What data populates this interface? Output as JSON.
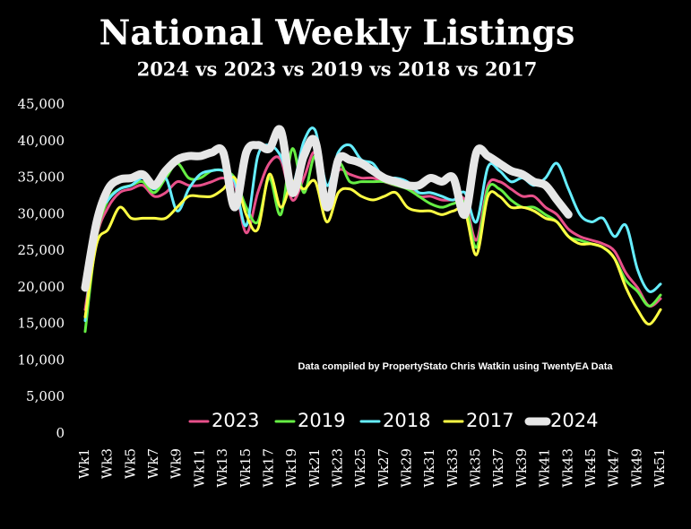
{
  "chart_data": {
    "type": "line",
    "title": "National Weekly Listings",
    "subtitle": "2024 vs 2023 vs 2019 vs 2018 vs 2017",
    "annotation": "Data compiled by PropertyStato Chris Watkin using TwentyEA Data",
    "categories": [
      "Wk1",
      null,
      "Wk3",
      null,
      "Wk5",
      null,
      "Wk7",
      null,
      "Wk9",
      null,
      "Wk11",
      null,
      "Wk13",
      null,
      "Wk15",
      null,
      "Wk17",
      null,
      "Wk19",
      null,
      "Wk21",
      null,
      "Wk23",
      null,
      "Wk25",
      null,
      "Wk27",
      null,
      "Wk29",
      null,
      "Wk31",
      null,
      "Wk33",
      null,
      "Wk35",
      null,
      "Wk37",
      null,
      "Wk39",
      null,
      "Wk41",
      null,
      "Wk43",
      null,
      "Wk45",
      null,
      "Wk47",
      null,
      "Wk49",
      null,
      "Wk51"
    ],
    "ylim": [
      0,
      45000
    ],
    "yticks": [
      0,
      {
        "value": 5000,
        "label": "5,000"
      },
      {
        "value": 10000,
        "label": "10,000"
      },
      {
        "value": 15000,
        "label": "15,000"
      },
      {
        "value": 20000,
        "label": "20,000"
      },
      {
        "value": 25000,
        "label": "25,000"
      },
      {
        "value": 30000,
        "label": "30,000"
      },
      {
        "value": 35000,
        "label": "35,000"
      },
      {
        "value": 40000,
        "label": "40,000"
      },
      {
        "value": 45000,
        "label": "45,000"
      }
    ],
    "grid": false,
    "series": [
      {
        "name": "2023",
        "color": "#e8508a",
        "width": 3,
        "values": [
          17000,
          27000,
          31000,
          33000,
          33500,
          34000,
          32500,
          33000,
          34500,
          34000,
          34000,
          34500,
          35000,
          34000,
          27500,
          33000,
          37000,
          37500,
          32000,
          35000,
          38500,
          32000,
          36000,
          35500,
          35000,
          35000,
          34500,
          34000,
          34000,
          32500,
          32500,
          32000,
          32000,
          32000,
          26500,
          34000,
          34500,
          33500,
          32500,
          32500,
          31000,
          30000,
          28000,
          27000,
          26500,
          26000,
          25000,
          22000,
          20000,
          17500,
          18500
        ]
      },
      {
        "name": "2019",
        "color": "#66ee44",
        "width": 3,
        "values": [
          14000,
          27000,
          32000,
          33500,
          34000,
          34500,
          33000,
          35000,
          37000,
          35000,
          35000,
          36000,
          36000,
          35000,
          31000,
          29000,
          35000,
          30000,
          39000,
          33000,
          38000,
          31500,
          37000,
          34500,
          34500,
          34500,
          34500,
          34000,
          33500,
          32500,
          31500,
          31000,
          31500,
          31500,
          25500,
          33500,
          33500,
          32000,
          31000,
          31000,
          30000,
          29000,
          27000,
          26500,
          26000,
          25500,
          24000,
          21000,
          19500,
          17500,
          19000
        ]
      },
      {
        "name": "2018",
        "color": "#66eeff",
        "width": 3,
        "values": [
          15500,
          29000,
          32000,
          33500,
          34000,
          35000,
          33500,
          35000,
          30500,
          33500,
          35500,
          36000,
          36000,
          34500,
          28500,
          38000,
          39500,
          38000,
          34000,
          40000,
          41500,
          34000,
          38500,
          39500,
          37500,
          37000,
          35000,
          35000,
          34500,
          33000,
          33000,
          32500,
          32000,
          33000,
          29000,
          36500,
          36000,
          34500,
          35000,
          34000,
          35000,
          37000,
          33500,
          30000,
          29000,
          29500,
          27000,
          28500,
          22500,
          19500,
          20500
        ]
      },
      {
        "name": "2017",
        "color": "#ffff44",
        "width": 3,
        "values": [
          16000,
          26000,
          28000,
          31000,
          29500,
          29500,
          29500,
          29500,
          31000,
          32500,
          32500,
          32500,
          33500,
          35000,
          30000,
          28000,
          35500,
          31000,
          34500,
          33500,
          34500,
          29000,
          33000,
          33500,
          32500,
          32000,
          32500,
          33000,
          31000,
          30500,
          30500,
          30000,
          30500,
          30500,
          24500,
          32500,
          32500,
          31000,
          31000,
          30500,
          29500,
          29000,
          27000,
          26000,
          26000,
          25500,
          24000,
          20000,
          17000,
          15000,
          17000
        ]
      },
      {
        "name": "2024",
        "color": "#e6e6e6",
        "width": 9,
        "values": [
          20000,
          29000,
          33500,
          34800,
          35000,
          35500,
          34000,
          36000,
          37500,
          38000,
          38000,
          38500,
          38500,
          31000,
          38500,
          39500,
          39000,
          41500,
          33000,
          38000,
          40000,
          31000,
          37500,
          37500,
          37000,
          36000,
          35000,
          34500,
          34000,
          34000,
          35000,
          34500,
          35000,
          30000,
          38500,
          38000,
          37000,
          36000,
          35500,
          34500,
          34000,
          32000,
          30000,
          null,
          null,
          null,
          null,
          null,
          null,
          null,
          null
        ]
      }
    ]
  }
}
